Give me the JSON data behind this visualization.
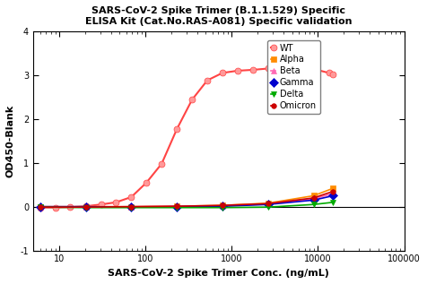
{
  "title_line1": "SARS-CoV-2 Spike Trimer (B.1.1.529) Specific",
  "title_line2": "ELISA Kit (Cat.No.RAS-A081) Specific validation",
  "xlabel": "SARS-CoV-2 Spike Trimer Conc. (ng/mL)",
  "ylabel": "OD450-Blank",
  "ylim": [
    -1,
    4
  ],
  "xlim": [
    5,
    100000
  ],
  "series": [
    {
      "label": "WT",
      "color": "#FF4444",
      "marker": "o",
      "markerfacecolor": "#FF9999",
      "markersize": 5,
      "linewidth": 1.5,
      "x": [
        6.1,
        9.0,
        13.5,
        20.3,
        30.5,
        45.7,
        68.6,
        102.9,
        154.3,
        231.5,
        347.2,
        520.8,
        781.2,
        1171.9,
        1757.8,
        2636.7,
        3955.1,
        5932.6,
        8898.9,
        13348.4,
        15000
      ],
      "y": [
        -0.02,
        -0.02,
        -0.01,
        0.01,
        0.05,
        0.1,
        0.22,
        0.55,
        0.98,
        1.77,
        2.44,
        2.88,
        3.05,
        3.1,
        3.12,
        3.15,
        3.15,
        3.14,
        3.14,
        3.05,
        3.02
      ]
    },
    {
      "label": "Alpha",
      "color": "#FF8C00",
      "marker": "s",
      "markerfacecolor": "#FF8C00",
      "markersize": 5,
      "linewidth": 1.2,
      "x": [
        6.1,
        20.3,
        68.6,
        231.5,
        781.2,
        2636.7,
        8898.9,
        15000
      ],
      "y": [
        0.0,
        0.0,
        0.0,
        0.01,
        0.03,
        0.08,
        0.25,
        0.42
      ]
    },
    {
      "label": "Beta",
      "color": "#FF69B4",
      "marker": "^",
      "markerfacecolor": "#FF69B4",
      "markersize": 5,
      "linewidth": 1.2,
      "x": [
        6.1,
        20.3,
        68.6,
        231.5,
        781.2,
        2636.7,
        8898.9,
        15000
      ],
      "y": [
        0.0,
        0.0,
        0.0,
        0.01,
        0.02,
        0.06,
        0.18,
        0.3
      ]
    },
    {
      "label": "Gamma",
      "color": "#0000CD",
      "marker": "D",
      "markerfacecolor": "#0000CD",
      "markersize": 5,
      "linewidth": 1.2,
      "x": [
        6.1,
        20.3,
        68.6,
        231.5,
        781.2,
        2636.7,
        8898.9,
        15000
      ],
      "y": [
        0.0,
        0.0,
        -0.01,
        0.0,
        0.01,
        0.05,
        0.15,
        0.25
      ]
    },
    {
      "label": "Delta",
      "color": "#00AA00",
      "marker": "v",
      "markerfacecolor": "#00AA00",
      "markersize": 5,
      "linewidth": 1.2,
      "x": [
        6.1,
        20.3,
        68.6,
        231.5,
        781.2,
        2636.7,
        8898.9,
        15000
      ],
      "y": [
        -0.01,
        -0.02,
        -0.02,
        -0.02,
        -0.02,
        -0.01,
        0.05,
        0.1
      ]
    },
    {
      "label": "Omicron",
      "color": "#CC0000",
      "marker": "o",
      "markerfacecolor": "#CC0000",
      "markersize": 4,
      "linewidth": 1.2,
      "x": [
        6.1,
        20.3,
        68.6,
        231.5,
        781.2,
        2636.7,
        8898.9,
        15000
      ],
      "y": [
        -0.01,
        -0.01,
        0.0,
        0.01,
        0.03,
        0.07,
        0.2,
        0.35
      ]
    }
  ],
  "legend_markers": [
    {
      "label": "WT",
      "color": "#FF4444",
      "marker": "o",
      "markerfacecolor": "#FF9999"
    },
    {
      "label": "Alpha",
      "color": "#FF8C00",
      "marker": "s",
      "markerfacecolor": "#FF8C00"
    },
    {
      "label": "Beta",
      "color": "#FF69B4",
      "marker": "^",
      "markerfacecolor": "#FF69B4"
    },
    {
      "label": "Gamma",
      "color": "#0000CD",
      "marker": "D",
      "markerfacecolor": "#0000CD"
    },
    {
      "label": "Delta",
      "color": "#00AA00",
      "marker": "v",
      "markerfacecolor": "#00AA00"
    },
    {
      "label": "Omicron",
      "color": "#CC0000",
      "marker": "o",
      "markerfacecolor": "#CC0000"
    }
  ]
}
